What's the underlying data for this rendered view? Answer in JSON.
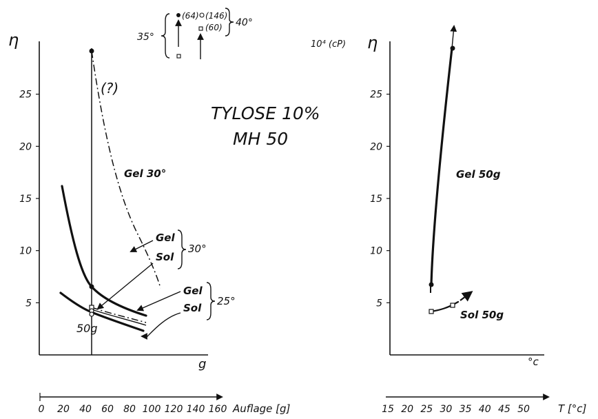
{
  "chart_data": [
    {
      "type": "line",
      "title": "TYLOSE  10%",
      "subtitle": "MH 50",
      "ylabel": "η",
      "xlabel": "g",
      "x_axis_label": "Auflage [g]",
      "x_ticks": [
        "0",
        "20",
        "40",
        "60",
        "80",
        "100",
        "120",
        "140",
        "160"
      ],
      "y_ticks": [
        "5",
        "10",
        "15",
        "20",
        "25"
      ],
      "xlim": [
        0,
        170
      ],
      "ylim": [
        0,
        30
      ],
      "grid": false,
      "series": [
        {
          "name": "Gel 30°",
          "style": "dash-dot",
          "x": [
            50,
            60,
            70,
            80,
            90,
            100
          ],
          "y": [
            28.5,
            17.5,
            11.5,
            8.2,
            6.5,
            5.4
          ]
        },
        {
          "name": "Gel 30°",
          "style": "thick",
          "x": [
            20,
            30,
            40,
            50,
            70,
            100
          ],
          "y": [
            16,
            10.5,
            7.8,
            6.3,
            4.8,
            3.7
          ]
        },
        {
          "name": "Sol 30°",
          "style": "dash-dot",
          "x": [
            50,
            70,
            100
          ],
          "y": [
            4.4,
            3.7,
            3.0
          ]
        },
        {
          "name": "Gel 25°",
          "style": "thin",
          "x": [
            50,
            70,
            100
          ],
          "y": [
            4.1,
            3.6,
            2.9
          ]
        },
        {
          "name": "Sol 25°",
          "style": "thick",
          "x": [
            20,
            35,
            50,
            70,
            95
          ],
          "y": [
            5.8,
            4.8,
            3.8,
            3.0,
            2.4
          ]
        }
      ],
      "vertical_line_label": "50g",
      "annotations": [
        "(?)",
        "Gel 30°",
        "Gel",
        "Sol",
        "30°",
        "Gel",
        "Sol",
        "25°",
        "35°",
        "40°",
        "(64)",
        "(146)",
        "(60)",
        "10⁴ (cP)"
      ]
    },
    {
      "type": "line",
      "ylabel": "η",
      "xlabel": "°c",
      "x_axis_label": "T [°c]",
      "x_ticks": [
        "15",
        "20",
        "25",
        "30",
        "35",
        "40",
        "45",
        "50"
      ],
      "y_ticks": [
        "5",
        "10",
        "15",
        "20",
        "25"
      ],
      "xlim": [
        10,
        52
      ],
      "ylim": [
        0,
        30
      ],
      "grid": false,
      "series": [
        {
          "name": "Gel 50g",
          "x": [
            25,
            27.5,
            30
          ],
          "y": [
            6.4,
            16,
            29
          ]
        },
        {
          "name": "Sol 50g",
          "x": [
            25,
            30,
            33
          ],
          "y": [
            4.0,
            4.6,
            6.0
          ]
        }
      ]
    }
  ]
}
